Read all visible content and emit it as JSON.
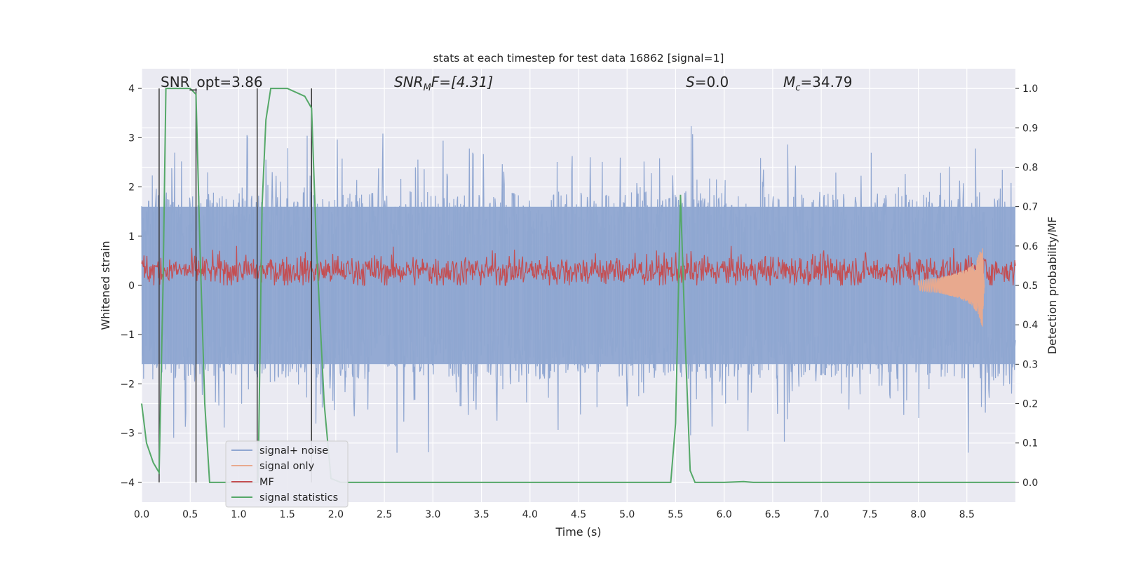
{
  "chart_data": {
    "type": "line",
    "title": "stats at each timestep for test data 16862 [signal=1]",
    "xlabel": "Time (s)",
    "ylabel_left": "Whitened strain",
    "ylabel_right": "Detection probability/MF",
    "xlim": [
      0.0,
      9.0
    ],
    "ylim_left": [
      -4.4,
      4.4
    ],
    "ylim_right": [
      -0.05,
      1.05
    ],
    "xticks": [
      "0.0",
      "0.5",
      "1.0",
      "1.5",
      "2.0",
      "2.5",
      "3.0",
      "3.5",
      "4.0",
      "4.5",
      "5.0",
      "5.5",
      "6.0",
      "6.5",
      "7.0",
      "7.5",
      "8.0",
      "8.5"
    ],
    "yticks_left": [
      "4",
      "3",
      "2",
      "1",
      "0",
      "−1",
      "−2",
      "−3",
      "−4"
    ],
    "yticks_right": [
      "1.0",
      "0.9",
      "0.8",
      "0.7",
      "0.6",
      "0.5",
      "0.4",
      "0.3",
      "0.2",
      "0.1",
      "0.0"
    ],
    "grid": true,
    "legend_placement": "lower-left",
    "annotations": {
      "snr_opt": "SNR_opt=3.86",
      "snr_mf_prefix": "SNR",
      "snr_mf_sub": "M",
      "snr_mf_rest": "F=[4.31]",
      "s_label": "S",
      "s_value": "=0.0",
      "mc_label": "M",
      "mc_sub": "c",
      "mc_value": "=34.79"
    },
    "legend": [
      "signal+ noise",
      "signal only",
      "MF",
      "signal statistics"
    ],
    "colors": {
      "signal_noise": "#8fa6d1",
      "signal_only": "#e8a98e",
      "mf": "#c44e52",
      "signal_statistics": "#55a868",
      "vlines": "#3a3a3a",
      "background": "#eaeaf2"
    },
    "series": [
      {
        "name": "signal statistics",
        "axis": "right",
        "x": [
          0.0,
          0.05,
          0.12,
          0.18,
          0.22,
          0.25,
          0.5,
          0.56,
          0.6,
          0.65,
          0.7,
          1.2,
          1.24,
          1.28,
          1.33,
          1.5,
          1.68,
          1.75,
          1.8,
          1.88,
          1.95,
          2.05,
          5.45,
          5.5,
          5.55,
          5.6,
          5.65,
          5.7,
          6.0,
          6.2,
          6.3,
          9.0
        ],
        "y": [
          0.2,
          0.1,
          0.05,
          0.025,
          0.5,
          1.0,
          1.0,
          0.985,
          0.6,
          0.2,
          0.0,
          0.0,
          0.7,
          0.92,
          1.0,
          1.0,
          0.98,
          0.95,
          0.6,
          0.2,
          0.01,
          0.0,
          0.0,
          0.15,
          0.73,
          0.35,
          0.03,
          0.0,
          0.0,
          0.002,
          0.0,
          0.0
        ]
      },
      {
        "name": "signal only",
        "axis": "left",
        "x": [
          8.0,
          8.2,
          8.4,
          8.55,
          8.62,
          8.66,
          8.68
        ],
        "y": [
          0.1,
          0.15,
          0.25,
          0.4,
          0.6,
          0.85,
          0.0
        ]
      }
    ],
    "vlines_x": [
      0.18,
      0.56,
      1.19,
      1.75
    ],
    "vlines_y_range": [
      -4.0,
      4.0
    ],
    "noise_envelope": {
      "upper_max": 4.0,
      "lower_min": -4.0,
      "typical_upper": 1.6,
      "typical_lower": -1.6
    },
    "mf_band": {
      "center": 0.3,
      "range": [
        0.0,
        0.8
      ]
    }
  }
}
